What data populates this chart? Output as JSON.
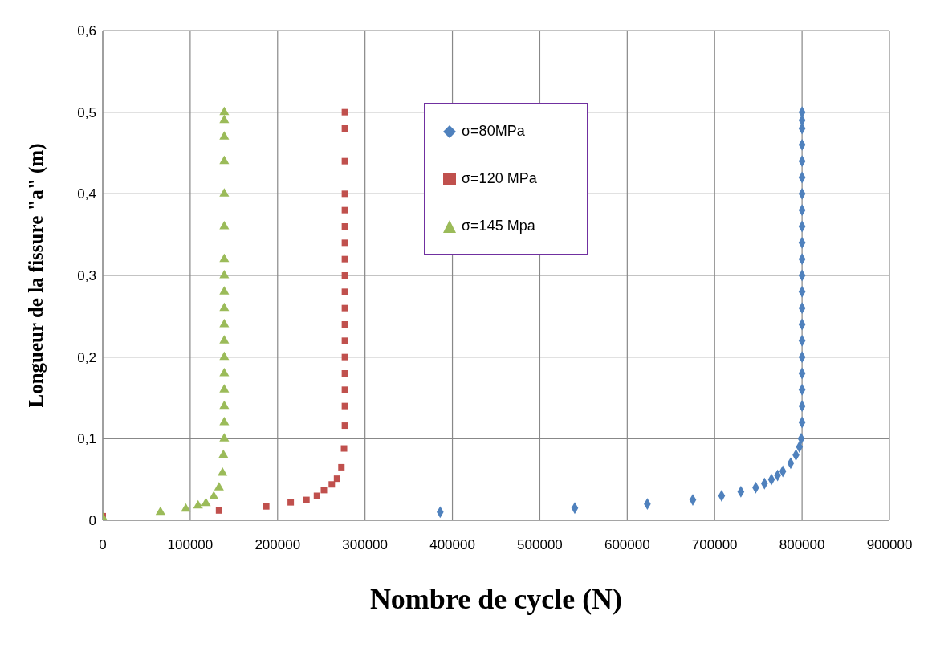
{
  "chart_data": {
    "type": "scatter",
    "xlabel": "Nombre de cycle (N)",
    "ylabel": "Longueur de la fissure \"a\" (m)",
    "xlim": [
      0,
      900000
    ],
    "xticks": [
      0,
      100000,
      200000,
      300000,
      400000,
      500000,
      600000,
      700000,
      800000,
      900000
    ],
    "ylim": [
      0,
      0.6
    ],
    "yticks": [
      {
        "value": 0,
        "label": "0"
      },
      {
        "value": 0.1,
        "label": "0,1"
      },
      {
        "value": 0.2,
        "label": "0,2"
      },
      {
        "value": 0.3,
        "label": "0,3"
      },
      {
        "value": 0.4,
        "label": "0,4"
      },
      {
        "value": 0.5,
        "label": "0,5"
      },
      {
        "value": 0.6,
        "label": "0,6"
      }
    ],
    "grid": true,
    "legend": "top",
    "series": [
      {
        "name": "σ=80MPa",
        "color": "#4f81bd",
        "marker": "diamond",
        "x": [
          386000,
          540000,
          623000,
          675000,
          708000,
          730000,
          747000,
          757000,
          765000,
          772000,
          778000,
          787000,
          793000,
          797000,
          799000,
          800000,
          800000,
          800000,
          800000,
          800000,
          800000,
          800000,
          800000,
          800000,
          800000,
          800000,
          800000,
          800000,
          800000,
          800000,
          800000,
          800000,
          800000,
          800000,
          800000,
          800000
        ],
        "values": [
          0.01,
          0.015,
          0.02,
          0.025,
          0.03,
          0.035,
          0.04,
          0.045,
          0.05,
          0.055,
          0.06,
          0.07,
          0.08,
          0.09,
          0.1,
          0.12,
          0.14,
          0.16,
          0.18,
          0.2,
          0.22,
          0.24,
          0.26,
          0.28,
          0.3,
          0.32,
          0.34,
          0.36,
          0.38,
          0.4,
          0.42,
          0.44,
          0.46,
          0.48,
          0.49,
          0.5
        ]
      },
      {
        "name": "σ=120 MPa",
        "color": "#c0504d",
        "marker": "square",
        "x": [
          0,
          133000,
          187000,
          215000,
          233000,
          245000,
          253000,
          262000,
          268000,
          273000,
          276000,
          277000,
          277000,
          277000,
          277000,
          277000,
          277000,
          277000,
          277000,
          277000,
          277000,
          277000,
          277000,
          277000,
          277000,
          277000,
          277000,
          277000,
          277000
        ],
        "values": [
          0.005,
          0.012,
          0.017,
          0.022,
          0.025,
          0.03,
          0.037,
          0.044,
          0.051,
          0.065,
          0.088,
          0.116,
          0.14,
          0.16,
          0.18,
          0.2,
          0.22,
          0.24,
          0.26,
          0.28,
          0.3,
          0.32,
          0.34,
          0.36,
          0.38,
          0.4,
          0.44,
          0.48,
          0.5
        ]
      },
      {
        "name": "σ=145 Mpa",
        "color": "#9bbb59",
        "marker": "triangle",
        "x": [
          0,
          66000,
          95000,
          109000,
          118000,
          127000,
          133000,
          137000,
          138000,
          139000,
          139000,
          139000,
          139000,
          139000,
          139000,
          139000,
          139000,
          139000,
          139000,
          139000,
          139000,
          139000,
          139000,
          139000,
          139000,
          139000,
          139000
        ],
        "values": [
          0.003,
          0.01,
          0.014,
          0.018,
          0.021,
          0.029,
          0.04,
          0.058,
          0.08,
          0.1,
          0.12,
          0.14,
          0.16,
          0.18,
          0.2,
          0.22,
          0.24,
          0.26,
          0.28,
          0.3,
          0.32,
          0.36,
          0.4,
          0.44,
          0.47,
          0.49,
          0.5
        ]
      }
    ]
  }
}
